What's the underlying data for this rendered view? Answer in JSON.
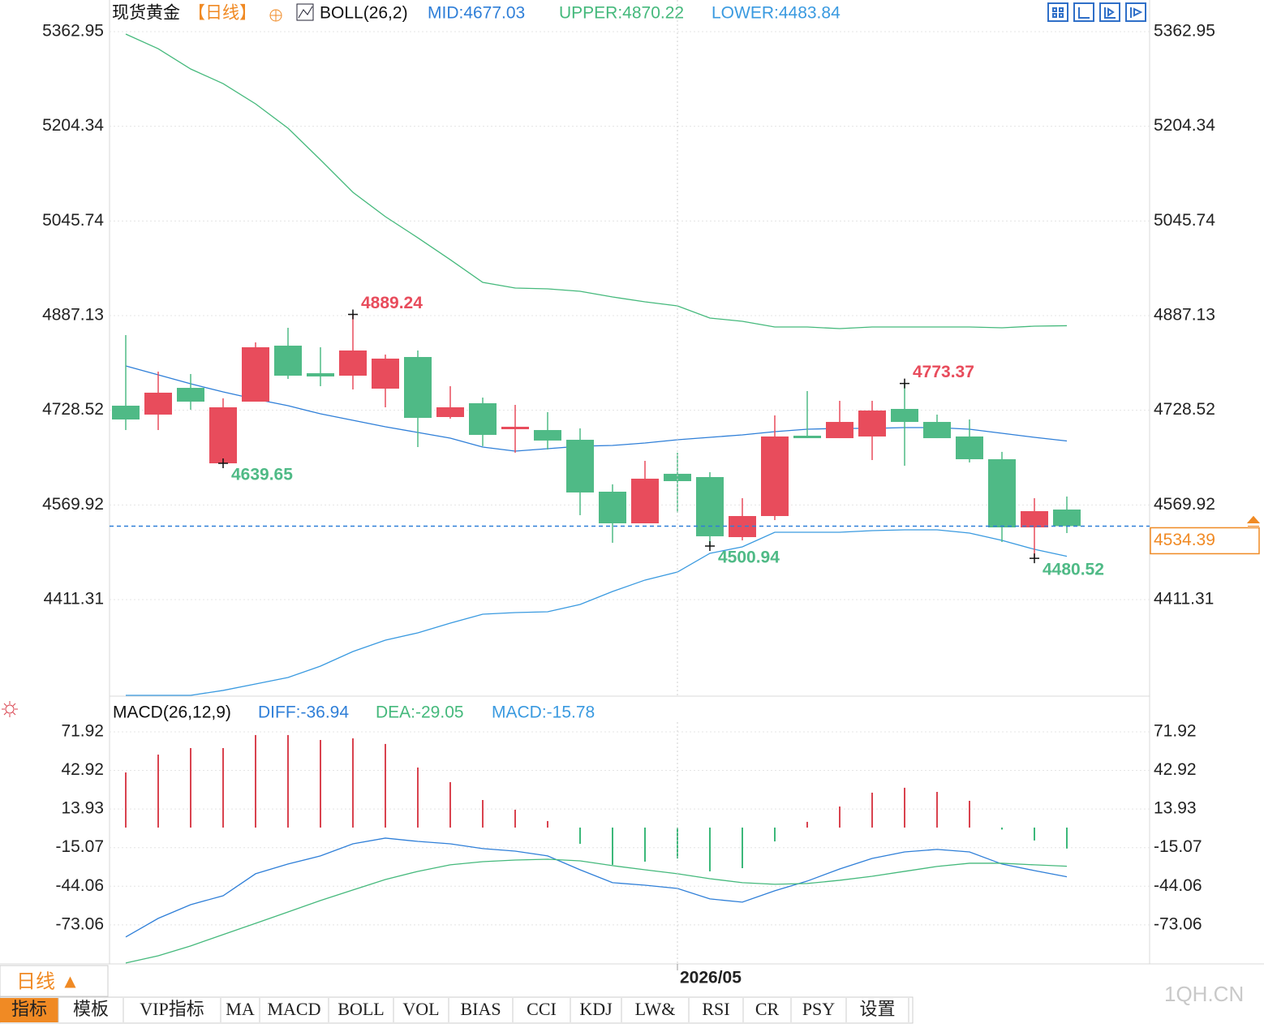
{
  "chart_data": [
    {
      "type": "candlestick",
      "title": "现货黄金",
      "period": "【日线】",
      "indicator": "BOLL(26,2)",
      "up_color": "#e84c5c",
      "down_color": "#4fba86",
      "open": [
        4736.2,
        4721.3,
        4766.1,
        4639.65,
        4743.0,
        4836.8,
        4790.6,
        4786.5,
        4764.8,
        4817.8,
        4717.2,
        4740.3,
        4696.8,
        4695.4,
        4679.1,
        4592.1,
        4539.1,
        4622.1,
        4616.6,
        4516.0,
        4551.3,
        4685.9,
        4681.8,
        4684.6,
        4730.8,
        4709.0,
        4684.6,
        4646.5,
        4532.3,
        4562.2
      ],
      "high": [
        4854.5,
        4793.3,
        4789.3,
        4748.5,
        4842.3,
        4866.7,
        4834.1,
        4889.24,
        4821.9,
        4828.7,
        4768.9,
        4749.8,
        4737.6,
        4725.4,
        4698.2,
        4604.4,
        4643.8,
        4657.4,
        4624.8,
        4581.2,
        4719.9,
        4760.7,
        4744.4,
        4744.4,
        4773.37,
        4721.3,
        4713.1,
        4658.8,
        4581.2,
        4584.0
      ],
      "low": [
        4695.4,
        4695.4,
        4729.4,
        4639.65,
        4743.0,
        4781.1,
        4768.9,
        4763.4,
        4733.5,
        4666.9,
        4714.5,
        4668.3,
        4657.4,
        4662.8,
        4552.7,
        4506.5,
        4539.1,
        4556.8,
        4500.94,
        4510.5,
        4544.5,
        4681.8,
        4681.8,
        4645.1,
        4635.6,
        4681.8,
        4641.1,
        4507.8,
        4480.52,
        4522.8
      ],
      "close": [
        4713.1,
        4758.0,
        4743.0,
        4733.5,
        4834.1,
        4786.5,
        4785.2,
        4828.7,
        4815.1,
        4715.8,
        4733.5,
        4687.3,
        4700.9,
        4677.8,
        4590.8,
        4539.1,
        4613.9,
        4609.8,
        4517.4,
        4551.3,
        4684.6,
        4681.8,
        4709.0,
        4728.1,
        4709.0,
        4681.8,
        4646.5,
        4532.3,
        4559.5,
        4534.39
      ],
      "series": [
        {
          "label": "MID:4677.03",
          "color": "#2f7fd8",
          "values": [
            4802.8,
            4787.9,
            4772.9,
            4759.3,
            4747.1,
            4736.2,
            4722.6,
            4711.7,
            4700.9,
            4691.4,
            4681.8,
            4666.9,
            4660.1,
            4664.2,
            4668.3,
            4669.6,
            4673.7,
            4679.1,
            4683.2,
            4687.3,
            4692.7,
            4696.8,
            4698.2,
            4698.2,
            4699.5,
            4699.5,
            4696.8,
            4690.0,
            4683.2,
            4677.03
          ]
        },
        {
          "label": "UPPER:4870.22",
          "color": "#45b97c",
          "values": [
            5358.9,
            5334.4,
            5300.4,
            5275.9,
            5242.0,
            5201.2,
            5148.2,
            5093.8,
            5053.0,
            5017.6,
            4980.9,
            4942.9,
            4933.4,
            4932.0,
            4927.9,
            4918.4,
            4910.2,
            4903.4,
            4883.1,
            4877.6,
            4868.1,
            4868.1,
            4865.4,
            4868.1,
            4868.1,
            4868.1,
            4868.1,
            4866.7,
            4869.5,
            4870.22
          ]
        },
        {
          "label": "LOWER:4483.84",
          "color": "#3a9ae0",
          "values": [
            4250.9,
            4250.9,
            4250.9,
            4259.1,
            4269.9,
            4280.8,
            4299.8,
            4324.3,
            4343.3,
            4355.6,
            4371.9,
            4386.8,
            4389.5,
            4390.9,
            4403.2,
            4424.9,
            4444.0,
            4457.5,
            4488.8,
            4499.7,
            4524.1,
            4524.1,
            4524.1,
            4526.9,
            4528.2,
            4528.2,
            4522.8,
            4510.5,
            4495.6,
            4483.84
          ]
        }
      ],
      "annotations": [
        {
          "index": 3,
          "value": 4639.65
        },
        {
          "index": 7,
          "value": 4889.24
        },
        {
          "index": 18,
          "value": 4500.94
        },
        {
          "index": 24,
          "value": 4773.37
        },
        {
          "index": 28,
          "value": 4480.52
        }
      ],
      "last_price": 4534.39,
      "last_price_color": "#f08a24",
      "last_line_color": "#2f7fd8",
      "ylim": [
        4249.5,
        5416
      ],
      "yticks": [
        5362.95,
        5204.34,
        5045.74,
        4887.13,
        4728.52,
        4569.92,
        4411.31
      ],
      "grid": true
    },
    {
      "type": "macd",
      "indicator": "MACD(26,12,9)",
      "categories": [
        null,
        null,
        null,
        null,
        null,
        null,
        null,
        null,
        null,
        null,
        null,
        null,
        null,
        null,
        null,
        null,
        null,
        "2026/05",
        null,
        null,
        null,
        null,
        null,
        null,
        null,
        null,
        null,
        null,
        null,
        null
      ],
      "series": [
        {
          "label": "DIFF:-36.94",
          "color": "#2f7fd8",
          "values": [
            -82.2,
            -68.2,
            -57.9,
            -51.2,
            -34.7,
            -27.4,
            -21.3,
            -12.2,
            -7.9,
            -10.4,
            -12.2,
            -15.8,
            -17.7,
            -21.3,
            -31.7,
            -41.4,
            -43.3,
            -45.7,
            -53.6,
            -56.0,
            -47.5,
            -40.2,
            -31.1,
            -23.2,
            -18.3,
            -16.4,
            -18.3,
            -27.4,
            -32.3,
            -36.94
          ]
        },
        {
          "label": "DEA:-29.05",
          "color": "#45b97c",
          "values": [
            -101.7,
            -96.3,
            -88.9,
            -80.4,
            -71.9,
            -63.4,
            -54.8,
            -46.9,
            -39.0,
            -32.9,
            -28.0,
            -25.6,
            -24.4,
            -23.8,
            -25.0,
            -28.6,
            -31.7,
            -34.7,
            -38.4,
            -41.4,
            -42.6,
            -42.0,
            -39.6,
            -36.6,
            -32.9,
            -29.2,
            -26.8,
            -26.8,
            -28.0,
            -29.05
          ]
        }
      ],
      "bars": {
        "label": "MACD:-15.78",
        "label_color": "#3a9ae0",
        "up_color": "#d9434f",
        "down_color": "#3cb87a",
        "values": [
          41.4,
          54.8,
          59.7,
          59.7,
          69.5,
          69.5,
          65.8,
          67.0,
          62.8,
          45.1,
          34.1,
          20.7,
          13.4,
          4.9,
          -12.2,
          -28.0,
          -25.6,
          -23.2,
          -32.9,
          -30.5,
          -10.4,
          4.3,
          15.8,
          26.2,
          29.9,
          26.8,
          20.1,
          -1.5,
          -9.7,
          -15.78
        ]
      },
      "ylim": [
        -102.4,
        79.2
      ],
      "yticks": [
        71.92,
        42.92,
        13.93,
        -15.07,
        -44.06,
        -73.06
      ],
      "grid": true
    }
  ],
  "period_button": "日线 ▲",
  "toolbar": {
    "tabs": [
      "指标",
      "模板",
      "VIP指标",
      "MA",
      "MACD",
      "BOLL",
      "VOL",
      "BIAS",
      "CCI",
      "KDJ",
      "LW&",
      "RSI",
      "CR",
      "PSY",
      "设置"
    ]
  },
  "watermark": "1QH.CN"
}
